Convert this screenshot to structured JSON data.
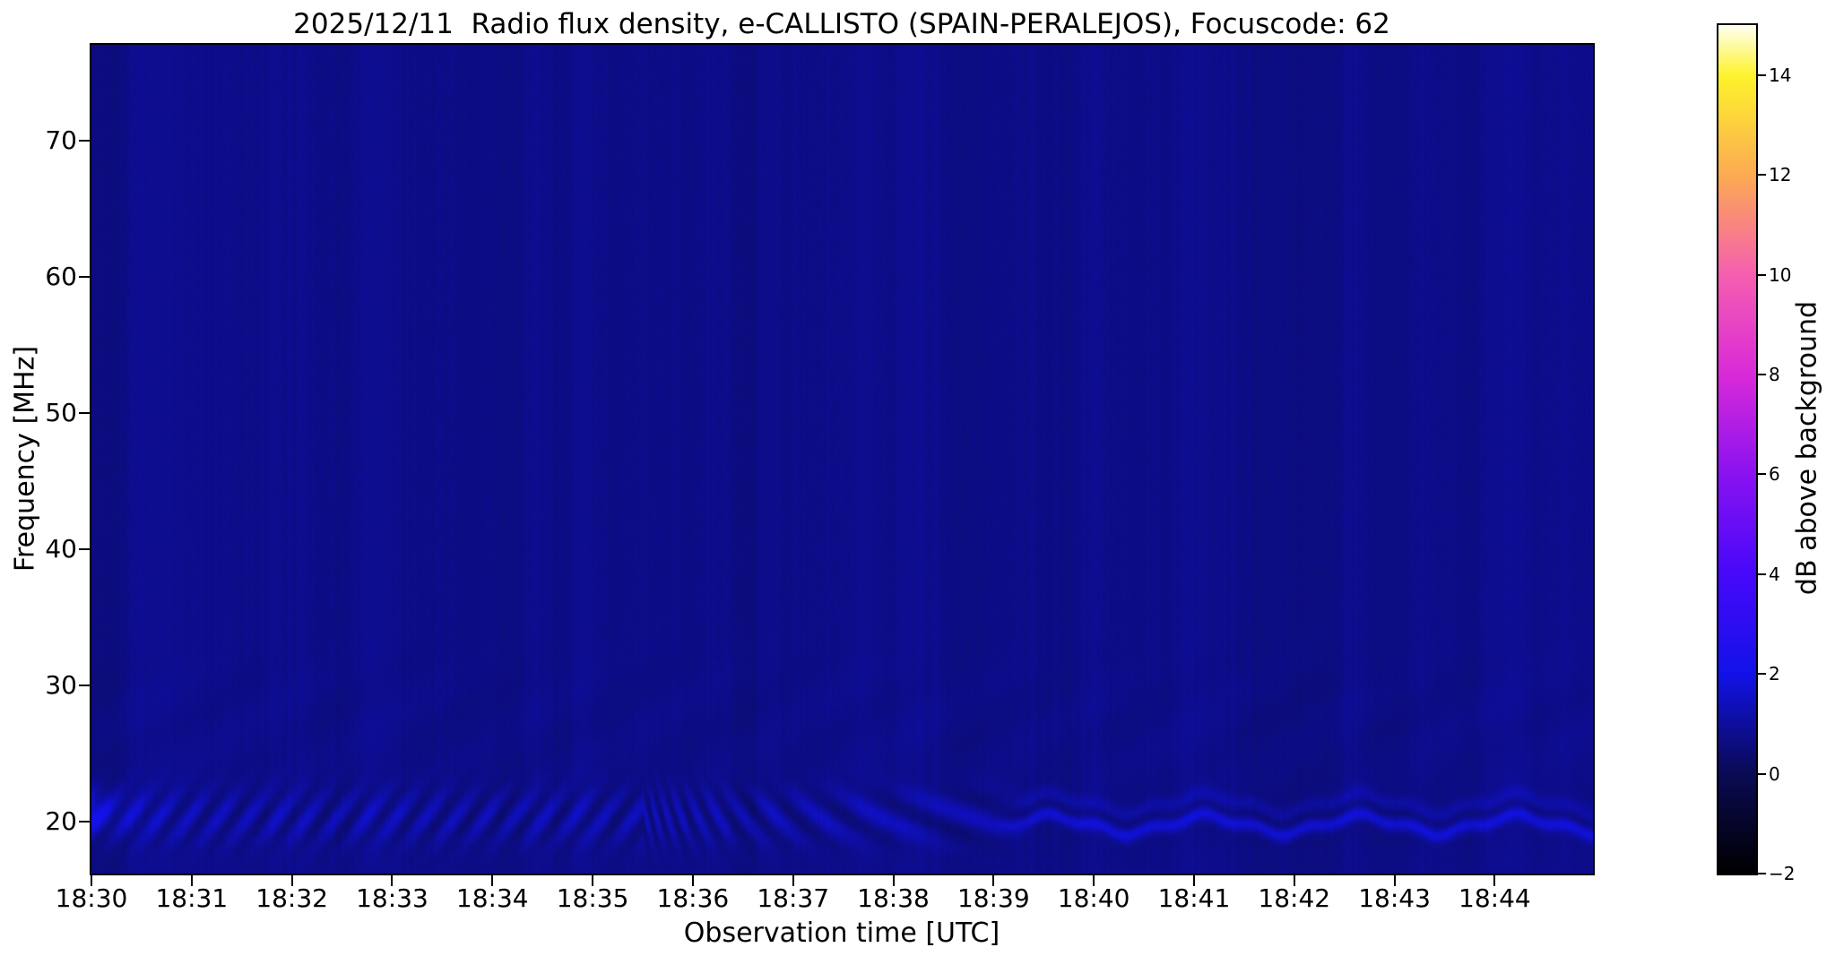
{
  "chart_data": {
    "type": "heatmap",
    "title": "2025/12/11  Radio flux density, e-CALLISTO (SPAIN-PERALEJOS), Focuscode: 62",
    "xlabel": "Observation time [UTC]",
    "ylabel": "Frequency [MHz]",
    "x_tick_labels": [
      "18:30",
      "18:31",
      "18:32",
      "18:33",
      "18:34",
      "18:35",
      "18:36",
      "18:37",
      "18:38",
      "18:39",
      "18:40",
      "18:41",
      "18:42",
      "18:43",
      "18:44"
    ],
    "x_span_minutes": 14.98,
    "y_tick_values": [
      20,
      30,
      40,
      50,
      60,
      70
    ],
    "y_tick_labels": [
      "20",
      "30",
      "40",
      "50",
      "60",
      "70"
    ],
    "ylim": [
      16.2,
      77.05
    ],
    "grid": false,
    "legend": null,
    "colorbar": {
      "label": "dB above background",
      "tick_values": [
        -2,
        0,
        2,
        4,
        6,
        8,
        10,
        12,
        14
      ],
      "tick_labels": [
        "−2",
        "0",
        "2",
        "4",
        "6",
        "8",
        "10",
        "12",
        "14"
      ],
      "clim": [
        -2,
        15
      ],
      "colormap_name": "gnuplot2",
      "colormap_stops": [
        {
          "x": 0.0,
          "color": "#000000"
        },
        {
          "x": 0.118,
          "color": "#0a0a55"
        },
        {
          "x": 0.235,
          "color": "#1212e8"
        },
        {
          "x": 0.353,
          "color": "#4708fa"
        },
        {
          "x": 0.471,
          "color": "#8a12f0"
        },
        {
          "x": 0.588,
          "color": "#d92ad9"
        },
        {
          "x": 0.706,
          "color": "#f55fb0"
        },
        {
          "x": 0.824,
          "color": "#fcab52"
        },
        {
          "x": 0.941,
          "color": "#fdf32b"
        },
        {
          "x": 1.0,
          "color": "#fffff2"
        }
      ]
    },
    "spectrogram": {
      "background_db": 0.72,
      "pixel_noise_db": 0.24,
      "vertical_striation_db": 0.3,
      "features": [
        {
          "id": "edge-arc",
          "time_min": [
            0,
            0.5
          ],
          "freq_mhz": [
            19.5,
            22.5
          ],
          "peak_db": 1.9,
          "pattern": "bright arc at start of record"
        },
        {
          "id": "diagonal-fringes",
          "time_min": [
            0,
            9.2
          ],
          "freq_mhz": [
            17.6,
            23.0
          ],
          "stripe_period_min_start": 0.3,
          "stripe_period_min_end": 0.7,
          "slope": "up-right",
          "peak_db": 1.8,
          "pattern": "slanted interference stripes near 20 MHz"
        },
        {
          "id": "wavy-band",
          "time_min": [
            9.2,
            14.98
          ],
          "freq_mhz": [
            18.8,
            22.0
          ],
          "undulation_period_min": 1.55,
          "undulation_amplitude_mhz": 0.8,
          "peak_db": 1.9,
          "pattern": "two undulating horizontal bright lines, upper one fainter"
        },
        {
          "id": "faint-mottling",
          "time_min": [
            0,
            14.98
          ],
          "freq_mhz": [
            23,
            32
          ],
          "peak_db": 0.1,
          "pattern": "very faint diagonal mottling"
        }
      ]
    }
  }
}
